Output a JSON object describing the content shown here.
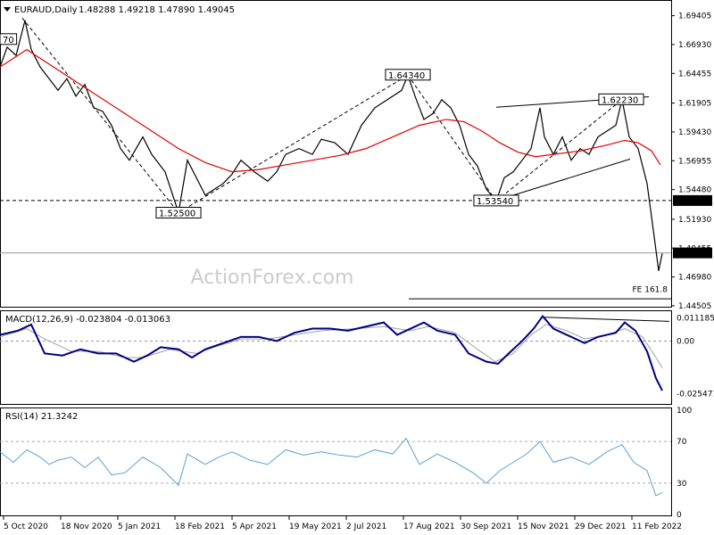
{
  "chart_data": {
    "type": "line",
    "main": {
      "symbol_header": "EURAUD,Daily",
      "ohlc_header": "1.48288 1.49218 1.47890 1.49045",
      "ylim": [
        1.445,
        1.706
      ],
      "y_ticks": [
        "1.69405",
        "1.66930",
        "1.64455",
        "1.61905",
        "1.59430",
        "1.56955",
        "1.54480",
        "1.51930",
        "1.49455",
        "1.46980",
        "1.44505"
      ],
      "current_price_label": "1.49045",
      "current_price": 1.49045,
      "level_label": "1.53540",
      "level": 1.5354,
      "fe_label": "FE 161.8",
      "fe_level": 1.4545,
      "annotations": [
        {
          "text": "70",
          "x": 0,
          "price": 1.674
        },
        {
          "text": "1.52500",
          "x": 200,
          "price": 1.525
        },
        {
          "text": "1.64340",
          "x": 457,
          "price": 1.6434
        },
        {
          "text": "1.53540",
          "x": 556,
          "price": 1.5354
        },
        {
          "text": "1.62230",
          "x": 696,
          "price": 1.6223
        }
      ],
      "watermark": "ActionForex.com",
      "price_points": [
        [
          0,
          1.65
        ],
        [
          8,
          1.667
        ],
        [
          18,
          1.66
        ],
        [
          28,
          1.69
        ],
        [
          35,
          1.665
        ],
        [
          45,
          1.65
        ],
        [
          55,
          1.64
        ],
        [
          65,
          1.63
        ],
        [
          75,
          1.64
        ],
        [
          85,
          1.625
        ],
        [
          95,
          1.635
        ],
        [
          105,
          1.615
        ],
        [
          115,
          1.612
        ],
        [
          125,
          1.6
        ],
        [
          135,
          1.58
        ],
        [
          145,
          1.57
        ],
        [
          160,
          1.59
        ],
        [
          170,
          1.575
        ],
        [
          185,
          1.56
        ],
        [
          200,
          1.525
        ],
        [
          210,
          1.57
        ],
        [
          220,
          1.555
        ],
        [
          230,
          1.54
        ],
        [
          240,
          1.545
        ],
        [
          250,
          1.55
        ],
        [
          260,
          1.558
        ],
        [
          270,
          1.57
        ],
        [
          285,
          1.56
        ],
        [
          300,
          1.552
        ],
        [
          310,
          1.56
        ],
        [
          320,
          1.575
        ],
        [
          335,
          1.58
        ],
        [
          350,
          1.575
        ],
        [
          360,
          1.588
        ],
        [
          375,
          1.585
        ],
        [
          390,
          1.575
        ],
        [
          405,
          1.6
        ],
        [
          420,
          1.615
        ],
        [
          430,
          1.62
        ],
        [
          440,
          1.625
        ],
        [
          450,
          1.63
        ],
        [
          457,
          1.643
        ],
        [
          465,
          1.625
        ],
        [
          475,
          1.605
        ],
        [
          485,
          1.61
        ],
        [
          495,
          1.622
        ],
        [
          505,
          1.615
        ],
        [
          515,
          1.6
        ],
        [
          525,
          1.575
        ],
        [
          535,
          1.565
        ],
        [
          545,
          1.545
        ],
        [
          556,
          1.535
        ],
        [
          565,
          1.555
        ],
        [
          575,
          1.56
        ],
        [
          585,
          1.57
        ],
        [
          595,
          1.58
        ],
        [
          605,
          1.615
        ],
        [
          610,
          1.59
        ],
        [
          620,
          1.575
        ],
        [
          630,
          1.59
        ],
        [
          640,
          1.57
        ],
        [
          650,
          1.58
        ],
        [
          660,
          1.575
        ],
        [
          670,
          1.59
        ],
        [
          680,
          1.595
        ],
        [
          690,
          1.6
        ],
        [
          697,
          1.622
        ],
        [
          705,
          1.59
        ],
        [
          715,
          1.58
        ],
        [
          725,
          1.55
        ],
        [
          732,
          1.51
        ],
        [
          738,
          1.475
        ],
        [
          742,
          1.49
        ]
      ],
      "ma_points": [
        [
          0,
          1.65
        ],
        [
          30,
          1.665
        ],
        [
          50,
          1.655
        ],
        [
          80,
          1.64
        ],
        [
          110,
          1.625
        ],
        [
          140,
          1.61
        ],
        [
          170,
          1.595
        ],
        [
          200,
          1.58
        ],
        [
          230,
          1.568
        ],
        [
          260,
          1.56
        ],
        [
          290,
          1.562
        ],
        [
          320,
          1.566
        ],
        [
          350,
          1.57
        ],
        [
          380,
          1.574
        ],
        [
          410,
          1.58
        ],
        [
          440,
          1.59
        ],
        [
          470,
          1.6
        ],
        [
          500,
          1.605
        ],
        [
          520,
          1.603
        ],
        [
          540,
          1.595
        ],
        [
          560,
          1.585
        ],
        [
          580,
          1.577
        ],
        [
          600,
          1.573
        ],
        [
          620,
          1.575
        ],
        [
          650,
          1.578
        ],
        [
          680,
          1.583
        ],
        [
          700,
          1.587
        ],
        [
          715,
          1.585
        ],
        [
          730,
          1.578
        ],
        [
          740,
          1.566
        ]
      ],
      "lines": [
        {
          "from": [
            25,
            1.692
          ],
          "to": [
            200,
            1.525
          ],
          "style": "dashed"
        },
        {
          "from": [
            200,
            1.525
          ],
          "to": [
            457,
            1.643
          ],
          "style": "dashed"
        },
        {
          "from": [
            457,
            1.643
          ],
          "to": [
            556,
            1.535
          ],
          "style": "dashed"
        },
        {
          "from": [
            556,
            1.535
          ],
          "to": [
            697,
            1.622
          ],
          "style": "dashed"
        },
        {
          "from": [
            556,
            1.6155
          ],
          "to": [
            727,
            1.6245
          ],
          "style": "solid"
        },
        {
          "from": [
            556,
            1.5354
          ],
          "to": [
            706,
            1.571
          ],
          "style": "solid"
        },
        {
          "from": [
            458,
            1.451
          ],
          "to": [
            752,
            1.451
          ],
          "style": "solid"
        }
      ]
    },
    "macd": {
      "header": "MACD(12,26,9) -0.023804 -0.013063",
      "ylim": [
        -0.03,
        0.014
      ],
      "y_ticks": [
        "0.011185",
        "0.00",
        "-0.025471"
      ],
      "macd_points": [
        [
          0,
          0.003
        ],
        [
          20,
          0.005
        ],
        [
          35,
          0.008
        ],
        [
          50,
          -0.006
        ],
        [
          70,
          -0.007
        ],
        [
          90,
          -0.004
        ],
        [
          110,
          -0.006
        ],
        [
          130,
          -0.006
        ],
        [
          150,
          -0.01
        ],
        [
          165,
          -0.007
        ],
        [
          180,
          -0.003
        ],
        [
          200,
          -0.004
        ],
        [
          215,
          -0.008
        ],
        [
          230,
          -0.004
        ],
        [
          250,
          -0.001
        ],
        [
          270,
          0.002
        ],
        [
          290,
          0.002
        ],
        [
          310,
          0.0
        ],
        [
          330,
          0.004
        ],
        [
          350,
          0.006
        ],
        [
          370,
          0.006
        ],
        [
          390,
          0.005
        ],
        [
          410,
          0.007
        ],
        [
          430,
          0.009
        ],
        [
          445,
          0.003
        ],
        [
          460,
          0.006
        ],
        [
          475,
          0.009
        ],
        [
          490,
          0.005
        ],
        [
          510,
          0.003
        ],
        [
          525,
          -0.006
        ],
        [
          545,
          -0.01
        ],
        [
          558,
          -0.011
        ],
        [
          570,
          -0.006
        ],
        [
          585,
          0.0
        ],
        [
          598,
          0.006
        ],
        [
          608,
          0.012
        ],
        [
          620,
          0.006
        ],
        [
          640,
          0.002
        ],
        [
          655,
          -0.001
        ],
        [
          670,
          0.002
        ],
        [
          690,
          0.004
        ],
        [
          700,
          0.009
        ],
        [
          712,
          0.005
        ],
        [
          725,
          -0.005
        ],
        [
          735,
          -0.018
        ],
        [
          742,
          -0.024
        ]
      ],
      "signal_points": [
        [
          0,
          0.002
        ],
        [
          30,
          0.006
        ],
        [
          50,
          0.001
        ],
        [
          80,
          -0.005
        ],
        [
          110,
          -0.005
        ],
        [
          140,
          -0.008
        ],
        [
          160,
          -0.008
        ],
        [
          190,
          -0.004
        ],
        [
          220,
          -0.006
        ],
        [
          240,
          -0.003
        ],
        [
          270,
          0.001
        ],
        [
          300,
          0.001
        ],
        [
          330,
          0.003
        ],
        [
          360,
          0.005
        ],
        [
          400,
          0.006
        ],
        [
          430,
          0.007
        ],
        [
          460,
          0.005
        ],
        [
          480,
          0.007
        ],
        [
          510,
          0.004
        ],
        [
          535,
          -0.004
        ],
        [
          555,
          -0.01
        ],
        [
          575,
          -0.006
        ],
        [
          595,
          0.003
        ],
        [
          612,
          0.008
        ],
        [
          635,
          0.005
        ],
        [
          655,
          0.001
        ],
        [
          680,
          0.003
        ],
        [
          700,
          0.006
        ],
        [
          720,
          0.002
        ],
        [
          735,
          -0.008
        ],
        [
          742,
          -0.013
        ]
      ],
      "trend_line": {
        "from": [
          610,
          0.0115
        ],
        "to": [
          750,
          0.0095
        ]
      }
    },
    "rsi": {
      "header": "RSI(14) 21.3242",
      "ylim": [
        0,
        100
      ],
      "y_ticks": [
        "100",
        "70",
        "30",
        "0"
      ],
      "levels": [
        70,
        30
      ],
      "points": [
        [
          0,
          60
        ],
        [
          15,
          50
        ],
        [
          30,
          62
        ],
        [
          45,
          55
        ],
        [
          55,
          48
        ],
        [
          65,
          52
        ],
        [
          80,
          55
        ],
        [
          95,
          45
        ],
        [
          110,
          55
        ],
        [
          125,
          38
        ],
        [
          140,
          40
        ],
        [
          160,
          55
        ],
        [
          180,
          45
        ],
        [
          200,
          28
        ],
        [
          210,
          58
        ],
        [
          230,
          48
        ],
        [
          245,
          55
        ],
        [
          260,
          60
        ],
        [
          280,
          52
        ],
        [
          300,
          48
        ],
        [
          320,
          62
        ],
        [
          340,
          57
        ],
        [
          360,
          60
        ],
        [
          380,
          57
        ],
        [
          400,
          55
        ],
        [
          420,
          62
        ],
        [
          440,
          58
        ],
        [
          455,
          73
        ],
        [
          470,
          48
        ],
        [
          490,
          58
        ],
        [
          510,
          50
        ],
        [
          530,
          40
        ],
        [
          545,
          30
        ],
        [
          560,
          42
        ],
        [
          575,
          50
        ],
        [
          590,
          58
        ],
        [
          605,
          70
        ],
        [
          620,
          50
        ],
        [
          640,
          55
        ],
        [
          660,
          48
        ],
        [
          680,
          60
        ],
        [
          697,
          67
        ],
        [
          710,
          50
        ],
        [
          725,
          42
        ],
        [
          735,
          18
        ],
        [
          742,
          21
        ]
      ]
    },
    "x_ticks": [
      "5 Oct 2020",
      "18 Nov 2020",
      "5 Jan 2021",
      "18 Feb 2021",
      "5 Apr 2021",
      "19 May 2021",
      "2 Jul 2021",
      "17 Aug 2021",
      "30 Sep 2021",
      "15 Nov 2021",
      "29 Dec 2021",
      "11 Feb 2022"
    ]
  },
  "colors": {
    "price": "#000000",
    "ma": "#e00000",
    "macd": "#000080",
    "signal": "#a0a0a0",
    "current_price_tag": "#000000",
    "level_tag": "#000000",
    "grid": "#c8c8c8",
    "watermark": "#cccccc"
  }
}
